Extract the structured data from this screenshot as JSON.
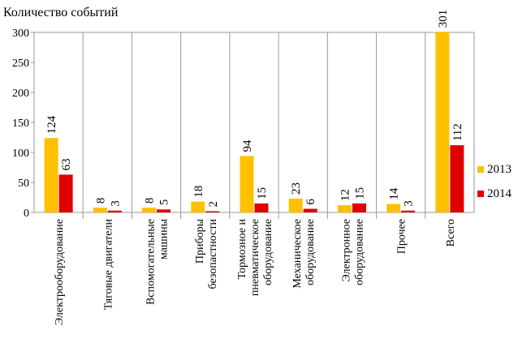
{
  "chart_data": {
    "type": "bar",
    "title": "Количество событий",
    "xlabel": "",
    "ylabel": "",
    "ylim": [
      0,
      300
    ],
    "yticks": [
      0,
      50,
      100,
      150,
      200,
      250,
      300
    ],
    "grid": false,
    "legend_position": "right",
    "categories": [
      [
        "Электрооборудование"
      ],
      [
        "Тяговые двигатели"
      ],
      [
        "Вспомогательные",
        "машины"
      ],
      [
        "Приборы",
        "безопастности"
      ],
      [
        "Тормозное и",
        "пневматическое",
        "оборудование"
      ],
      [
        "Механическое",
        "оборудование"
      ],
      [
        "Электронное",
        "оборудование"
      ],
      [
        "Прочее"
      ],
      [
        "Всего"
      ]
    ],
    "series": [
      {
        "name": "2013",
        "color": "#FFC000",
        "values": [
          124,
          8,
          8,
          18,
          94,
          23,
          12,
          14,
          301
        ]
      },
      {
        "name": "2014",
        "color": "#E00000",
        "values": [
          63,
          3,
          5,
          2,
          15,
          6,
          15,
          3,
          112
        ]
      }
    ]
  }
}
